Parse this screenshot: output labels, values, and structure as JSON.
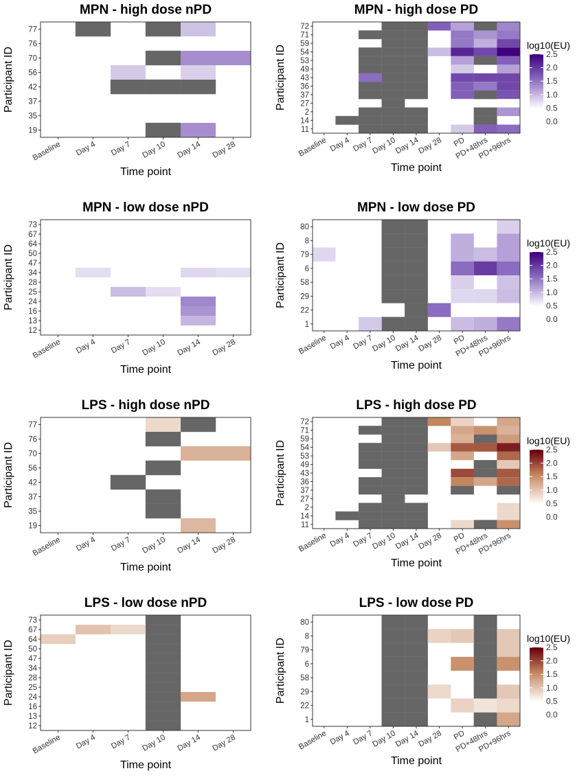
{
  "chart_data": [
    {
      "type": "heatmap",
      "title": "MPN - high dose nPD",
      "xlabel": "Time point",
      "ylabel": "Participant ID",
      "palette": "purple",
      "x": [
        "Baseline",
        "Day 4",
        "Day 7",
        "Day 10",
        "Day 14",
        "Day 28"
      ],
      "y": [
        "77",
        "76",
        "70",
        "56",
        "42",
        "37",
        "35",
        "19"
      ],
      "gray": [
        [
          0,
          1
        ],
        [
          0,
          3
        ],
        [
          2,
          3
        ],
        [
          4,
          2
        ],
        [
          4,
          3
        ],
        [
          4,
          4
        ],
        [
          7,
          3
        ]
      ],
      "cells": [
        [
          0,
          4,
          0.95
        ],
        [
          2,
          4,
          1.35
        ],
        [
          2,
          5,
          1.35
        ],
        [
          3,
          2,
          0.9
        ],
        [
          3,
          4,
          0.85
        ],
        [
          7,
          4,
          1.35
        ]
      ]
    },
    {
      "type": "heatmap",
      "title": "MPN - high dose PD",
      "xlabel": "Time point",
      "ylabel": "Participant ID",
      "palette": "purple",
      "x": [
        "Baseline",
        "Day 4",
        "Day 7",
        "Day 10",
        "Day 14",
        "Day 28",
        "PD",
        "PD+48hrs",
        "PD+96hrs"
      ],
      "y": [
        "72",
        "71",
        "59",
        "54",
        "53",
        "49",
        "43",
        "36",
        "37",
        "27",
        "2",
        "14",
        "11"
      ],
      "gray": [
        [
          0,
          3
        ],
        [
          0,
          4
        ],
        [
          0,
          7
        ],
        [
          1,
          2
        ],
        [
          1,
          3
        ],
        [
          1,
          4
        ],
        [
          2,
          3
        ],
        [
          2,
          4
        ],
        [
          3,
          2
        ],
        [
          3,
          3
        ],
        [
          3,
          4
        ],
        [
          4,
          2
        ],
        [
          4,
          3
        ],
        [
          4,
          4
        ],
        [
          4,
          7
        ],
        [
          5,
          2
        ],
        [
          5,
          3
        ],
        [
          5,
          4
        ],
        [
          6,
          3
        ],
        [
          6,
          4
        ],
        [
          7,
          2
        ],
        [
          7,
          3
        ],
        [
          7,
          4
        ],
        [
          8,
          2
        ],
        [
          8,
          3
        ],
        [
          8,
          4
        ],
        [
          8,
          7
        ],
        [
          9,
          3
        ],
        [
          10,
          2
        ],
        [
          10,
          3
        ],
        [
          10,
          4
        ],
        [
          10,
          7
        ],
        [
          11,
          1
        ],
        [
          11,
          2
        ],
        [
          11,
          3
        ],
        [
          11,
          4
        ],
        [
          11,
          7
        ],
        [
          12,
          2
        ],
        [
          12,
          3
        ],
        [
          12,
          4
        ]
      ],
      "cells": [
        [
          0,
          5,
          1.7
        ],
        [
          0,
          6,
          1.2
        ],
        [
          0,
          8,
          1.4
        ],
        [
          1,
          6,
          1.5
        ],
        [
          1,
          7,
          1.3
        ],
        [
          1,
          8,
          1.5
        ],
        [
          2,
          6,
          1.5
        ],
        [
          2,
          7,
          1.1
        ],
        [
          2,
          8,
          1.9
        ],
        [
          3,
          5,
          1.0
        ],
        [
          3,
          6,
          2.2
        ],
        [
          3,
          7,
          1.9
        ],
        [
          3,
          8,
          2.5
        ],
        [
          4,
          6,
          1.2
        ],
        [
          4,
          8,
          1.7
        ],
        [
          5,
          6,
          0.9
        ],
        [
          5,
          8,
          1.2
        ],
        [
          6,
          2,
          1.6
        ],
        [
          6,
          6,
          1.9
        ],
        [
          6,
          7,
          1.9
        ],
        [
          6,
          8,
          1.9
        ],
        [
          7,
          6,
          1.7
        ],
        [
          7,
          7,
          1.5
        ],
        [
          7,
          8,
          1.9
        ],
        [
          8,
          6,
          1.7
        ],
        [
          8,
          8,
          1.8
        ],
        [
          10,
          8,
          1.3
        ],
        [
          12,
          6,
          0.9
        ],
        [
          12,
          7,
          1.7
        ],
        [
          12,
          8,
          1.6
        ]
      ],
      "legend": {
        "title": "log10(EU)",
        "ticks": [
          "0.0",
          "0.5",
          "1.0",
          "1.5",
          "2.0",
          "2.5"
        ],
        "range": [
          0,
          2.5
        ]
      }
    },
    {
      "type": "heatmap",
      "title": "MPN - low dose nPD",
      "xlabel": "Time point",
      "ylabel": "Participant ID",
      "palette": "purple",
      "x": [
        "Baseline",
        "Day 4",
        "Day 7",
        "Day 10",
        "Day 14",
        "Day 28"
      ],
      "y": [
        "73",
        "67",
        "64",
        "50",
        "47",
        "34",
        "28",
        "25",
        "24",
        "16",
        "13",
        "12"
      ],
      "gray": [],
      "cells": [
        [
          5,
          1,
          0.75
        ],
        [
          5,
          4,
          0.8
        ],
        [
          5,
          5,
          0.75
        ],
        [
          7,
          2,
          1.0
        ],
        [
          7,
          3,
          0.75
        ],
        [
          8,
          4,
          1.4
        ],
        [
          9,
          4,
          1.3
        ],
        [
          10,
          4,
          1.05
        ]
      ]
    },
    {
      "type": "heatmap",
      "title": "MPN - low dose PD",
      "xlabel": "Time point",
      "ylabel": "Participant ID",
      "palette": "purple",
      "x": [
        "Baseline",
        "Day 4",
        "Day 7",
        "Day 10",
        "Day 14",
        "Day 28",
        "PD",
        "PD+48hrs",
        "PD+96hrs"
      ],
      "y": [
        "80",
        "8",
        "79",
        "6",
        "58",
        "29",
        "22",
        "1"
      ],
      "gray": [
        [
          0,
          3
        ],
        [
          0,
          4
        ],
        [
          1,
          3
        ],
        [
          1,
          4
        ],
        [
          2,
          3
        ],
        [
          2,
          4
        ],
        [
          3,
          3
        ],
        [
          3,
          4
        ],
        [
          4,
          3
        ],
        [
          4,
          4
        ],
        [
          5,
          3
        ],
        [
          5,
          4
        ],
        [
          6,
          4
        ],
        [
          7,
          3
        ],
        [
          7,
          4
        ]
      ],
      "cells": [
        [
          0,
          8,
          0.85
        ],
        [
          1,
          6,
          1.1
        ],
        [
          1,
          8,
          1.2
        ],
        [
          2,
          0,
          0.8
        ],
        [
          2,
          6,
          1.1
        ],
        [
          2,
          7,
          1.0
        ],
        [
          2,
          8,
          1.2
        ],
        [
          3,
          6,
          1.6
        ],
        [
          3,
          7,
          2.0
        ],
        [
          3,
          8,
          1.6
        ],
        [
          4,
          6,
          0.85
        ],
        [
          4,
          8,
          0.95
        ],
        [
          5,
          6,
          0.8
        ],
        [
          5,
          7,
          0.8
        ],
        [
          5,
          8,
          1.0
        ],
        [
          6,
          5,
          1.6
        ],
        [
          7,
          2,
          0.9
        ],
        [
          7,
          6,
          1.0
        ],
        [
          7,
          7,
          1.1
        ],
        [
          7,
          8,
          1.5
        ]
      ],
      "legend": {
        "title": "log10(EU)",
        "ticks": [
          "0.0",
          "0.5",
          "1.0",
          "1.5",
          "2.0",
          "2.5"
        ],
        "range": [
          0,
          2.5
        ]
      }
    },
    {
      "type": "heatmap",
      "title": "LPS - high dose nPD",
      "xlabel": "Time point",
      "ylabel": "Participant ID",
      "palette": "brown",
      "x": [
        "Baseline",
        "Day 4",
        "Day 7",
        "Day 10",
        "Day 14",
        "Day 28"
      ],
      "y": [
        "77",
        "76",
        "70",
        "56",
        "42",
        "37",
        "35",
        "19"
      ],
      "gray": [
        [
          0,
          4
        ],
        [
          1,
          3
        ],
        [
          3,
          3
        ],
        [
          4,
          2
        ],
        [
          5,
          3
        ],
        [
          6,
          3
        ]
      ],
      "cells": [
        [
          0,
          3,
          0.85
        ],
        [
          2,
          4,
          1.2
        ],
        [
          2,
          5,
          1.2
        ],
        [
          7,
          4,
          1.15
        ]
      ]
    },
    {
      "type": "heatmap",
      "title": "LPS - high dose PD",
      "xlabel": "Time point",
      "ylabel": "Participant ID",
      "palette": "brown",
      "x": [
        "Baseline",
        "Day 4",
        "Day 7",
        "Day 10",
        "Day 14",
        "Day 28",
        "PD",
        "PD+48hrs",
        "PD+96hrs"
      ],
      "y": [
        "72",
        "71",
        "59",
        "54",
        "53",
        "49",
        "43",
        "36",
        "37",
        "27",
        "2",
        "14",
        "11"
      ],
      "gray": [
        [
          0,
          3
        ],
        [
          0,
          4
        ],
        [
          1,
          2
        ],
        [
          1,
          3
        ],
        [
          1,
          4
        ],
        [
          2,
          3
        ],
        [
          2,
          4
        ],
        [
          2,
          7
        ],
        [
          3,
          2
        ],
        [
          3,
          3
        ],
        [
          3,
          4
        ],
        [
          4,
          2
        ],
        [
          4,
          3
        ],
        [
          4,
          4
        ],
        [
          5,
          2
        ],
        [
          5,
          3
        ],
        [
          5,
          4
        ],
        [
          5,
          7
        ],
        [
          6,
          3
        ],
        [
          6,
          4
        ],
        [
          6,
          7
        ],
        [
          7,
          2
        ],
        [
          7,
          3
        ],
        [
          7,
          4
        ],
        [
          8,
          2
        ],
        [
          8,
          3
        ],
        [
          8,
          4
        ],
        [
          8,
          6
        ],
        [
          8,
          8
        ],
        [
          9,
          3
        ],
        [
          10,
          2
        ],
        [
          10,
          3
        ],
        [
          10,
          4
        ],
        [
          11,
          1
        ],
        [
          11,
          2
        ],
        [
          11,
          3
        ],
        [
          11,
          4
        ],
        [
          12,
          2
        ],
        [
          12,
          3
        ],
        [
          12,
          4
        ],
        [
          12,
          7
        ]
      ],
      "cells": [
        [
          0,
          5,
          1.6
        ],
        [
          0,
          6,
          0.9
        ],
        [
          0,
          8,
          1.3
        ],
        [
          1,
          6,
          1.3
        ],
        [
          1,
          7,
          1.5
        ],
        [
          1,
          8,
          1.2
        ],
        [
          2,
          6,
          1.2
        ],
        [
          2,
          8,
          1.4
        ],
        [
          3,
          5,
          1.0
        ],
        [
          3,
          6,
          1.9
        ],
        [
          3,
          7,
          1.9
        ],
        [
          3,
          8,
          2.3
        ],
        [
          4,
          6,
          1.3
        ],
        [
          4,
          8,
          1.8
        ],
        [
          5,
          8,
          1.0
        ],
        [
          6,
          6,
          2.0
        ],
        [
          6,
          8,
          1.9
        ],
        [
          7,
          6,
          1.6
        ],
        [
          7,
          7,
          1.3
        ],
        [
          7,
          8,
          1.8
        ],
        [
          10,
          8,
          0.85
        ],
        [
          11,
          8,
          0.85
        ],
        [
          12,
          6,
          0.85
        ],
        [
          12,
          8,
          1.5
        ]
      ],
      "legend": {
        "title": "log10(EU)",
        "ticks": [
          "0.0",
          "0.5",
          "1.0",
          "1.5",
          "2.0",
          "2.5"
        ],
        "range": [
          0,
          2.5
        ]
      }
    },
    {
      "type": "heatmap",
      "title": "LPS - low dose nPD",
      "xlabel": "Time point",
      "ylabel": "Participant ID",
      "palette": "brown",
      "x": [
        "Baseline",
        "Day 4",
        "Day 7",
        "Day 10",
        "Day 14",
        "Day 28"
      ],
      "y": [
        "73",
        "67",
        "64",
        "50",
        "47",
        "34",
        "28",
        "25",
        "24",
        "16",
        "13",
        "12"
      ],
      "gray": [
        [
          0,
          3
        ],
        [
          1,
          3
        ],
        [
          2,
          3
        ],
        [
          3,
          3
        ],
        [
          4,
          3
        ],
        [
          5,
          3
        ],
        [
          6,
          3
        ],
        [
          7,
          3
        ],
        [
          8,
          3
        ],
        [
          9,
          3
        ],
        [
          10,
          3
        ],
        [
          11,
          3
        ]
      ],
      "cells": [
        [
          1,
          1,
          1.05
        ],
        [
          1,
          2,
          0.85
        ],
        [
          2,
          0,
          0.95
        ],
        [
          8,
          4,
          1.3
        ]
      ]
    },
    {
      "type": "heatmap",
      "title": "LPS - low dose PD",
      "xlabel": "Time point",
      "ylabel": "Participant ID",
      "palette": "brown",
      "x": [
        "Baseline",
        "Day 4",
        "Day 7",
        "Day 10",
        "Day 14",
        "Day 28",
        "PD",
        "PD+48hrs",
        "PD+96hrs"
      ],
      "y": [
        "80",
        "8",
        "79",
        "6",
        "58",
        "29",
        "22",
        "1"
      ],
      "gray": [
        [
          0,
          3
        ],
        [
          0,
          4
        ],
        [
          0,
          7
        ],
        [
          1,
          3
        ],
        [
          1,
          4
        ],
        [
          1,
          7
        ],
        [
          2,
          3
        ],
        [
          2,
          4
        ],
        [
          2,
          7
        ],
        [
          3,
          3
        ],
        [
          3,
          4
        ],
        [
          3,
          7
        ],
        [
          4,
          3
        ],
        [
          4,
          4
        ],
        [
          4,
          7
        ],
        [
          5,
          3
        ],
        [
          5,
          4
        ],
        [
          5,
          7
        ],
        [
          6,
          3
        ],
        [
          6,
          4
        ],
        [
          7,
          3
        ],
        [
          7,
          4
        ],
        [
          7,
          7
        ]
      ],
      "cells": [
        [
          1,
          5,
          0.9
        ],
        [
          1,
          6,
          1.0
        ],
        [
          1,
          8,
          1.0
        ],
        [
          2,
          8,
          1.0
        ],
        [
          3,
          6,
          1.5
        ],
        [
          3,
          8,
          1.5
        ],
        [
          5,
          5,
          0.85
        ],
        [
          5,
          8,
          1.0
        ],
        [
          6,
          6,
          0.9
        ],
        [
          6,
          7,
          0.75
        ],
        [
          6,
          8,
          0.85
        ],
        [
          7,
          8,
          1.3
        ]
      ],
      "legend": {
        "title": "log10(EU)",
        "ticks": [
          "0.0",
          "0.5",
          "1.0",
          "1.5",
          "2.0",
          "2.5"
        ],
        "range": [
          0,
          2.5
        ]
      }
    }
  ],
  "colors": {
    "gray": "#666666",
    "purple_low": "#ffffff",
    "purple_high": "#3f007d",
    "brown_low": "#ffffff",
    "brown_high": "#67000d",
    "brown_mid": "#c4865e",
    "purple_mid": "#8a6cc0",
    "axis": "#333333"
  }
}
